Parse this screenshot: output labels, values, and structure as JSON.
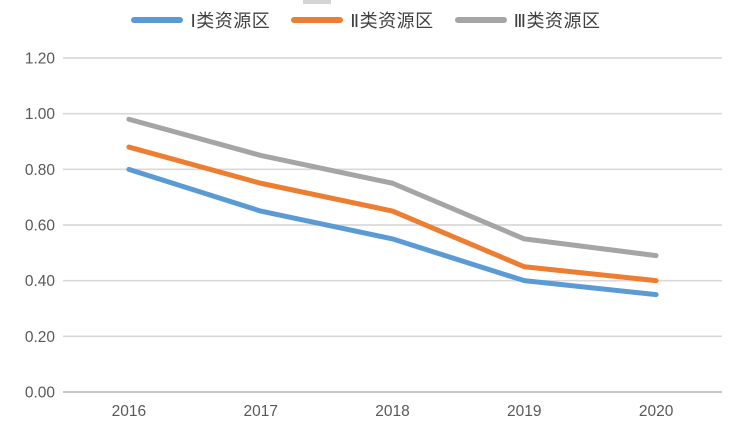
{
  "chart_data": {
    "type": "line",
    "categories": [
      "2016",
      "2017",
      "2018",
      "2019",
      "2020"
    ],
    "series": [
      {
        "name": "Ⅰ类资源区",
        "color": "#5B9BD5",
        "values": [
          0.8,
          0.65,
          0.55,
          0.4,
          0.35
        ]
      },
      {
        "name": "Ⅱ类资源区",
        "color": "#ED7D31",
        "values": [
          0.88,
          0.75,
          0.65,
          0.45,
          0.4
        ]
      },
      {
        "name": "Ⅲ类资源区",
        "color": "#A5A5A5",
        "values": [
          0.98,
          0.85,
          0.75,
          0.55,
          0.49
        ]
      }
    ],
    "title": "",
    "xlabel": "",
    "ylabel": "",
    "ylim": [
      0.0,
      1.2
    ],
    "ytick_step": 0.2,
    "ytick_labels": [
      "0.00",
      "0.20",
      "0.40",
      "0.60",
      "0.80",
      "1.00",
      "1.20"
    ],
    "grid": true,
    "legend_position": "top",
    "colors": {
      "gridline": "#D9D9D9",
      "axis_line": "#C6C6C6",
      "tick_label": "#595959",
      "legend_text": "#404040"
    }
  }
}
